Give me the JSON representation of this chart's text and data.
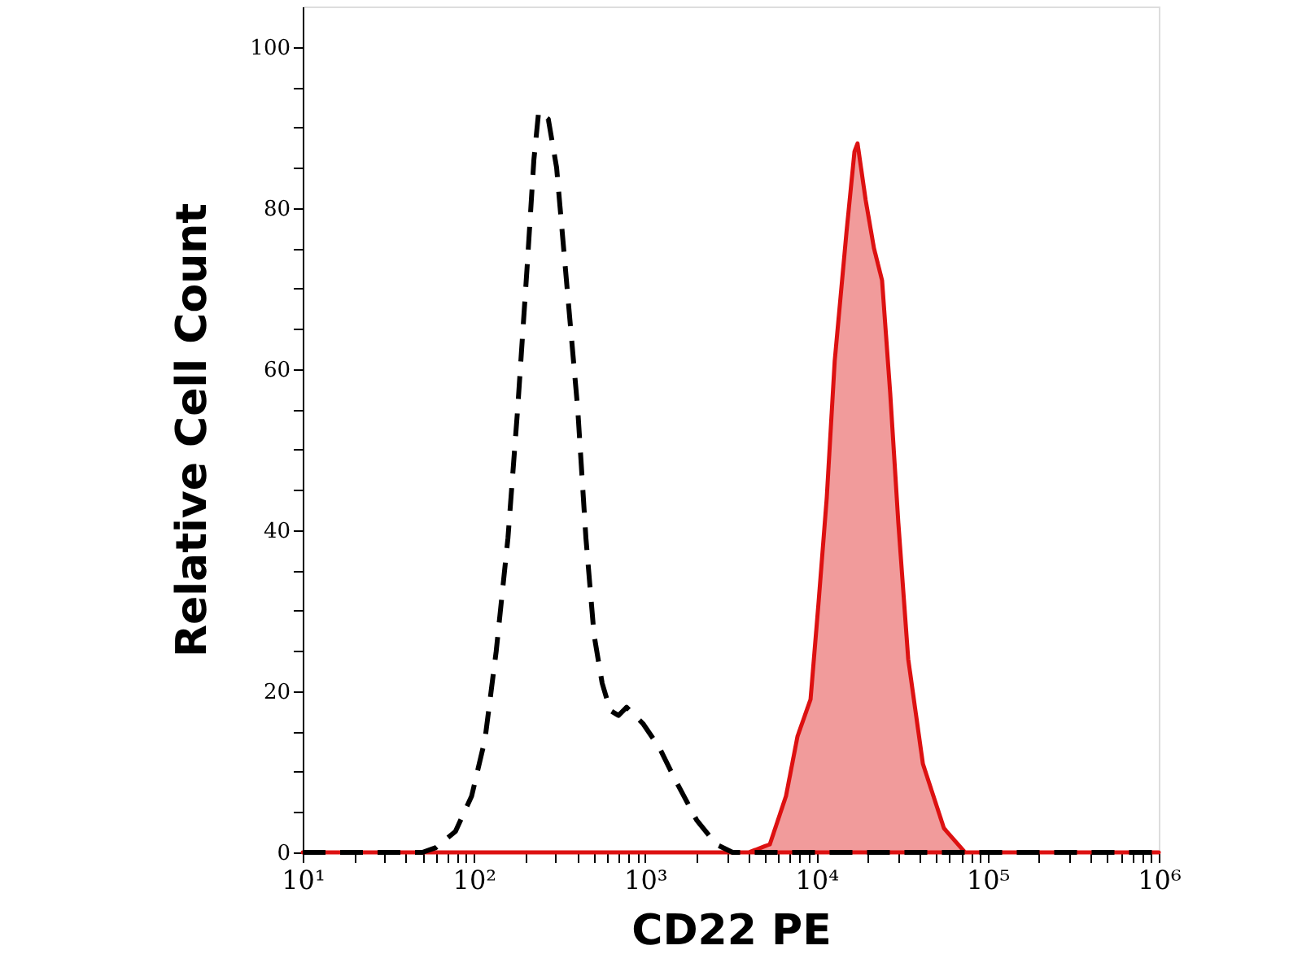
{
  "chart_data": {
    "type": "line",
    "xlabel": "CD22 PE",
    "ylabel": "Relative Cell Count",
    "log": "x",
    "grid": false,
    "xlim": [
      10,
      1000000
    ],
    "ylim": [
      0,
      105
    ],
    "xticks": [
      {
        "value": 10,
        "label": "10¹"
      },
      {
        "value": 20,
        "label": null
      },
      {
        "value": 30,
        "label": null
      },
      {
        "value": 40,
        "label": null
      },
      {
        "value": 50,
        "label": null
      },
      {
        "value": 60,
        "label": null
      },
      {
        "value": 70,
        "label": null
      },
      {
        "value": 80,
        "label": null
      },
      {
        "value": 90,
        "label": null
      },
      {
        "value": 100,
        "label": "10²"
      },
      {
        "value": 200,
        "label": null
      },
      {
        "value": 300,
        "label": null
      },
      {
        "value": 400,
        "label": null
      },
      {
        "value": 500,
        "label": null
      },
      {
        "value": 600,
        "label": null
      },
      {
        "value": 700,
        "label": null
      },
      {
        "value": 800,
        "label": null
      },
      {
        "value": 900,
        "label": null
      },
      {
        "value": 1000,
        "label": "10³"
      },
      {
        "value": 2000,
        "label": null
      },
      {
        "value": 3000,
        "label": null
      },
      {
        "value": 4000,
        "label": null
      },
      {
        "value": 5000,
        "label": null
      },
      {
        "value": 6000,
        "label": null
      },
      {
        "value": 7000,
        "label": null
      },
      {
        "value": 8000,
        "label": null
      },
      {
        "value": 9000,
        "label": null
      },
      {
        "value": 10000,
        "label": "10⁴"
      },
      {
        "value": 20000,
        "label": null
      },
      {
        "value": 30000,
        "label": null
      },
      {
        "value": 40000,
        "label": null
      },
      {
        "value": 50000,
        "label": null
      },
      {
        "value": 60000,
        "label": null
      },
      {
        "value": 70000,
        "label": null
      },
      {
        "value": 80000,
        "label": null
      },
      {
        "value": 90000,
        "label": null
      },
      {
        "value": 100000,
        "label": "10⁵"
      },
      {
        "value": 200000,
        "label": null
      },
      {
        "value": 300000,
        "label": null
      },
      {
        "value": 400000,
        "label": null
      },
      {
        "value": 500000,
        "label": null
      },
      {
        "value": 600000,
        "label": null
      },
      {
        "value": 700000,
        "label": null
      },
      {
        "value": 800000,
        "label": null
      },
      {
        "value": 900000,
        "label": null
      },
      {
        "value": 1000000,
        "label": "10⁶"
      }
    ],
    "yticks": [
      0,
      {
        "value": 5,
        "label": null
      },
      {
        "value": 10,
        "label": null
      },
      {
        "value": 15,
        "label": null
      },
      20,
      {
        "value": 25,
        "label": null
      },
      {
        "value": 30,
        "label": null
      },
      {
        "value": 35,
        "label": null
      },
      40,
      {
        "value": 45,
        "label": null
      },
      {
        "value": 50,
        "label": null
      },
      {
        "value": 55,
        "label": null
      },
      60,
      {
        "value": 65,
        "label": null
      },
      {
        "value": 70,
        "label": null
      },
      {
        "value": 75,
        "label": null
      },
      80,
      {
        "value": 85,
        "label": null
      },
      {
        "value": 90,
        "label": null
      },
      {
        "value": 95,
        "label": null
      },
      100
    ],
    "series": [
      {
        "line_style": "dashed",
        "color": "#000000",
        "x": [
          10,
          50,
          60,
          78,
          97,
          116,
          135,
          158,
          180,
          205,
          224,
          239,
          272,
          304,
          347,
          404,
          451,
          503,
          561,
          626,
          699,
          779,
          970,
          1210,
          1500,
          2000,
          2600,
          3240,
          1000000
        ],
        "values": [
          0,
          0,
          0.6,
          2.6,
          7,
          14,
          25,
          39,
          55,
          73,
          86,
          92,
          91,
          85,
          71,
          55,
          39,
          27,
          21,
          17.6,
          17,
          18,
          16,
          13,
          9,
          4,
          1,
          0,
          0
        ]
      },
      {
        "type": "area",
        "line_style": "solid",
        "color": "#dd1111",
        "x": [
          10,
          4030,
          5350,
          6650,
          7760,
          9250,
          10300,
          11500,
          12800,
          15000,
          16700,
          17400,
          19400,
          21700,
          24200,
          27000,
          30100,
          34400,
          41900,
          55600,
          73900,
          100000,
          1000000
        ],
        "values": [
          0,
          0,
          1,
          7,
          14.4,
          19,
          31,
          44,
          61,
          77,
          87,
          88,
          81,
          75,
          71,
          57,
          41,
          24,
          11,
          3,
          0,
          0,
          0
        ]
      }
    ]
  }
}
